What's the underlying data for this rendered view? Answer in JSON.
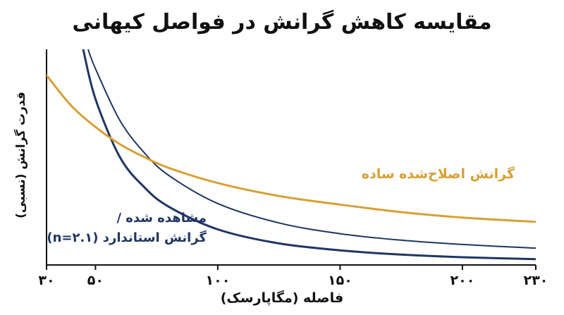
{
  "chart_data": {
    "type": "line",
    "title": "مقایسه کاهش گرانش در فواصل کیهانی",
    "xlabel": "فاصله (مگاپارسک)",
    "ylabel": "قدرت گرانش (نسبی)",
    "xlim": [
      30,
      230
    ],
    "xticks": [
      30,
      50,
      100,
      150,
      200,
      230
    ],
    "xtick_labels": [
      "۳۰",
      "۵۰",
      "۱۰۰",
      "۱۵۰",
      "۲۰۰",
      "۲۳۰"
    ],
    "grid": false,
    "legend": "none",
    "annotations": {
      "standard_line1": "مشاهده شده /",
      "standard_line2": "گرانش استاندارد (n=۲.۱)",
      "modified": "گرانش اصلاح‌شده ساده"
    },
    "series": [
      {
        "color": "#1f3563",
        "x": [
          45,
          50,
          60,
          70,
          80,
          100,
          125,
          150,
          175,
          200,
          230
        ],
        "y": [
          1.0,
          0.77,
          0.5,
          0.36,
          0.27,
          0.165,
          0.1,
          0.068,
          0.048,
          0.036,
          0.027
        ]
      },
      {
        "color": "#1f3563",
        "x": [
          47,
          50,
          60,
          70,
          80,
          100,
          125,
          150,
          175,
          200,
          230
        ],
        "y": [
          1.0,
          0.91,
          0.67,
          0.52,
          0.415,
          0.285,
          0.195,
          0.145,
          0.115,
          0.095,
          0.078
        ]
      },
      {
        "color": "#d7a035",
        "x": [
          30,
          40,
          50,
          60,
          70,
          80,
          100,
          125,
          150,
          175,
          200,
          230
        ],
        "y": [
          0.88,
          0.74,
          0.64,
          0.56,
          0.5,
          0.45,
          0.38,
          0.32,
          0.28,
          0.245,
          0.22,
          0.2
        ]
      }
    ]
  }
}
